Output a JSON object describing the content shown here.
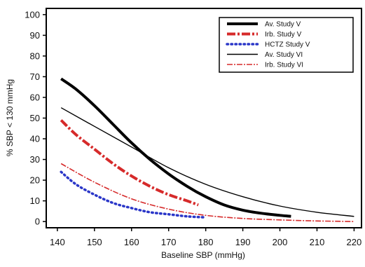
{
  "chart_data": {
    "type": "line",
    "title": "",
    "xlabel": "Baseline SBP (mmHg)",
    "ylabel": "% SBP < 130 mmHg",
    "xlim": [
      137,
      222
    ],
    "ylim": [
      -3,
      103
    ],
    "x_ticks": [
      140,
      150,
      160,
      170,
      180,
      190,
      200,
      210,
      220
    ],
    "y_ticks": [
      0,
      10,
      20,
      30,
      40,
      50,
      60,
      70,
      80,
      90,
      100
    ],
    "grid": false,
    "legend_position": "top-right",
    "series": [
      {
        "name": "Av. Study V",
        "style": "thick-solid",
        "color": "#000000",
        "x": [
          141,
          145,
          150,
          155,
          160,
          165,
          170,
          175,
          180,
          185,
          190,
          195,
          200,
          203
        ],
        "y": [
          69,
          64,
          56,
          47,
          38,
          30,
          23,
          17,
          12,
          8,
          5.5,
          4,
          3,
          2.5
        ]
      },
      {
        "name": "Irb. Study V",
        "style": "thick-dashdot",
        "color": "#d62a2a",
        "x": [
          141,
          145,
          150,
          155,
          160,
          165,
          170,
          175,
          178
        ],
        "y": [
          49,
          42,
          35,
          28,
          22,
          17,
          13,
          10,
          8
        ]
      },
      {
        "name": "HCTZ Study V",
        "style": "dotted",
        "color": "#2a36c8",
        "x": [
          141,
          145,
          150,
          155,
          160,
          165,
          170,
          175,
          180
        ],
        "y": [
          24,
          18,
          13,
          9,
          6.5,
          4.5,
          3.5,
          2.5,
          2
        ]
      },
      {
        "name": "Av. Study VI",
        "style": "thin-solid",
        "color": "#000000",
        "x": [
          141,
          150,
          160,
          170,
          180,
          190,
          200,
          210,
          220
        ],
        "y": [
          55,
          46,
          36,
          26,
          18,
          12,
          7.5,
          4.5,
          2.5
        ]
      },
      {
        "name": "Irb. Study VI",
        "style": "thin-dashdot",
        "color": "#d62a2a",
        "x": [
          141,
          150,
          160,
          170,
          180,
          190,
          200,
          210,
          220
        ],
        "y": [
          28,
          19,
          11,
          6,
          3,
          1.5,
          0.8,
          0.3,
          0
        ]
      }
    ]
  }
}
